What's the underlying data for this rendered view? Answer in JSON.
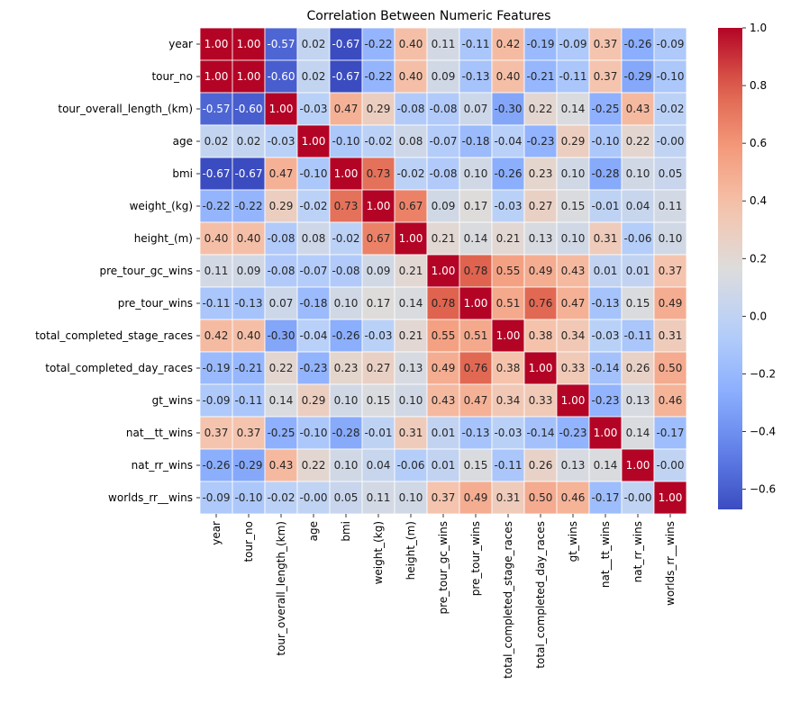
{
  "chart_data": {
    "type": "heatmap",
    "title": "Correlation Between Numeric Features",
    "labels": [
      "year",
      "tour_no",
      "tour_overall_length_(km)",
      "age",
      "bmi",
      "weight_(kg)",
      "height_(m)",
      "pre_tour_gc_wins",
      "pre_tour_wins",
      "total_completed_stage_races",
      "total_completed_day_races",
      "gt_wins",
      "nat__tt_wins",
      "nat_rr_wins",
      "worlds_rr__wins"
    ],
    "values": [
      [
        1.0,
        1.0,
        -0.57,
        0.02,
        -0.67,
        -0.22,
        0.4,
        0.11,
        -0.11,
        0.42,
        -0.19,
        -0.09,
        0.37,
        -0.26,
        -0.09
      ],
      [
        1.0,
        1.0,
        -0.6,
        0.02,
        -0.67,
        -0.22,
        0.4,
        0.09,
        -0.13,
        0.4,
        -0.21,
        -0.11,
        0.37,
        -0.29,
        -0.1
      ],
      [
        -0.57,
        -0.6,
        1.0,
        -0.03,
        0.47,
        0.29,
        -0.08,
        -0.08,
        0.07,
        -0.3,
        0.22,
        0.14,
        -0.25,
        0.43,
        -0.02
      ],
      [
        0.02,
        0.02,
        -0.03,
        1.0,
        -0.1,
        -0.02,
        0.08,
        -0.07,
        -0.18,
        -0.04,
        -0.23,
        0.29,
        -0.1,
        0.22,
        -0.0
      ],
      [
        -0.67,
        -0.67,
        0.47,
        -0.1,
        1.0,
        0.73,
        -0.02,
        -0.08,
        0.1,
        -0.26,
        0.23,
        0.1,
        -0.28,
        0.1,
        0.05
      ],
      [
        -0.22,
        -0.22,
        0.29,
        -0.02,
        0.73,
        1.0,
        0.67,
        0.09,
        0.17,
        -0.03,
        0.27,
        0.15,
        -0.01,
        0.04,
        0.11
      ],
      [
        0.4,
        0.4,
        -0.08,
        0.08,
        -0.02,
        0.67,
        1.0,
        0.21,
        0.14,
        0.21,
        0.13,
        0.1,
        0.31,
        -0.06,
        0.1
      ],
      [
        0.11,
        0.09,
        -0.08,
        -0.07,
        -0.08,
        0.09,
        0.21,
        1.0,
        0.78,
        0.55,
        0.49,
        0.43,
        0.01,
        0.01,
        0.37
      ],
      [
        -0.11,
        -0.13,
        0.07,
        -0.18,
        0.1,
        0.17,
        0.14,
        0.78,
        1.0,
        0.51,
        0.76,
        0.47,
        -0.13,
        0.15,
        0.49
      ],
      [
        0.42,
        0.4,
        -0.3,
        -0.04,
        -0.26,
        -0.03,
        0.21,
        0.55,
        0.51,
        1.0,
        0.38,
        0.34,
        -0.03,
        -0.11,
        0.31
      ],
      [
        -0.19,
        -0.21,
        0.22,
        -0.23,
        0.23,
        0.27,
        0.13,
        0.49,
        0.76,
        0.38,
        1.0,
        0.33,
        -0.14,
        0.26,
        0.5
      ],
      [
        -0.09,
        -0.11,
        0.14,
        0.29,
        0.1,
        0.15,
        0.1,
        0.43,
        0.47,
        0.34,
        0.33,
        1.0,
        -0.23,
        0.13,
        0.46
      ],
      [
        0.37,
        0.37,
        -0.25,
        -0.1,
        -0.28,
        -0.01,
        0.31,
        0.01,
        -0.13,
        -0.03,
        -0.14,
        -0.23,
        1.0,
        0.14,
        -0.17
      ],
      [
        -0.26,
        -0.29,
        0.43,
        0.22,
        0.1,
        0.04,
        -0.06,
        0.01,
        0.15,
        -0.11,
        0.26,
        0.13,
        0.14,
        1.0,
        -0.0
      ],
      [
        -0.09,
        -0.1,
        -0.02,
        -0.0,
        0.05,
        0.11,
        0.1,
        0.37,
        0.49,
        0.31,
        0.5,
        0.46,
        -0.17,
        -0.0,
        1.0
      ]
    ],
    "colormap": "coolwarm",
    "vmin": -0.67,
    "vmax": 1.0,
    "colorbar_ticks": [
      "-0.6",
      "-0.4",
      "-0.2",
      "0.0",
      "0.2",
      "0.4",
      "0.6",
      "0.8",
      "1.0"
    ],
    "colors": {
      "low": "#3b4cc0",
      "mid": "#dddcdc",
      "high": "#b40426"
    }
  }
}
